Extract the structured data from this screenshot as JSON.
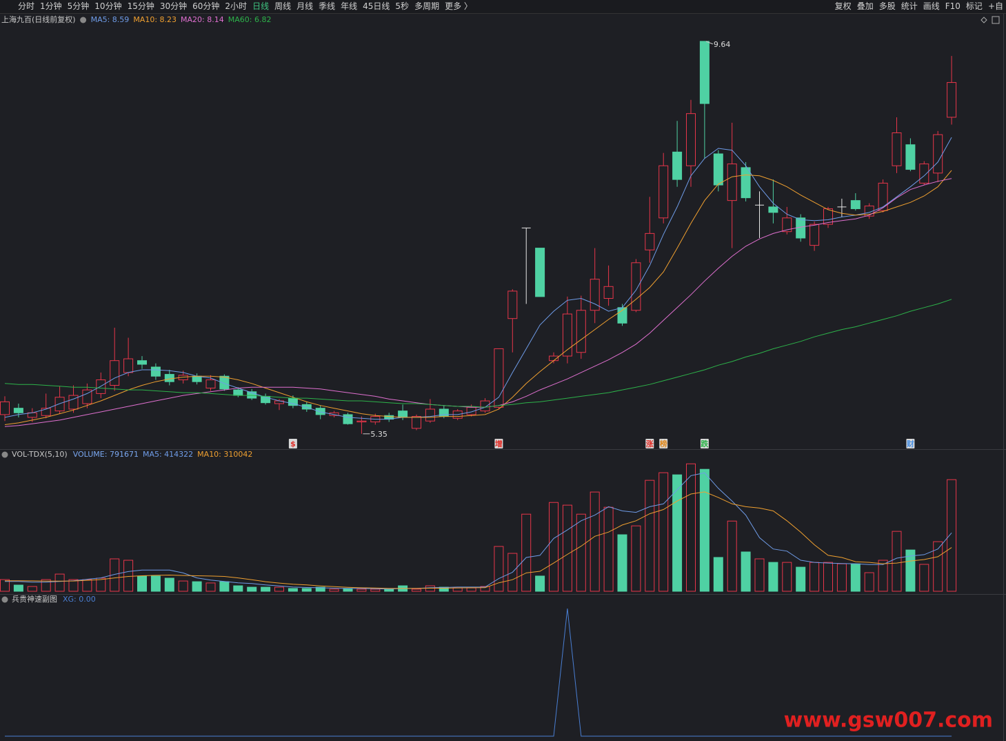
{
  "toolbar": {
    "periods": [
      "分时",
      "1分钟",
      "5分钟",
      "10分钟",
      "15分钟",
      "30分钟",
      "60分钟",
      "2小时",
      "日线",
      "周线",
      "月线",
      "季线",
      "年线",
      "45日线",
      "5秒",
      "多周期",
      "更多 〉"
    ],
    "active": "日线",
    "tools": [
      "复权",
      "叠加",
      "多股",
      "统计",
      "画线",
      "F10",
      "标记",
      "+自"
    ]
  },
  "chart_data": [
    {
      "type": "candlestick",
      "title": "上海九百(日线前复权)",
      "ylim": [
        5.19,
        9.79
      ],
      "open": [
        5.56,
        5.63,
        5.53,
        5.55,
        5.6,
        5.62,
        5.68,
        5.79,
        5.88,
        6.02,
        6.15,
        6.08,
        6.0,
        5.94,
        5.98,
        5.85,
        5.98,
        5.83,
        5.81,
        5.76,
        5.68,
        5.74,
        5.67,
        5.63,
        5.55,
        5.56,
        5.48,
        5.48,
        5.55,
        5.6,
        5.41,
        5.49,
        5.62,
        5.52,
        5.56,
        5.6,
        5.64,
        6.61,
        7.6,
        7.38,
        6.15,
        6.2,
        6.24,
        6.7,
        6.83,
        6.73,
        6.7,
        7.36,
        7.71,
        8.43,
        8.28,
        9.64,
        8.41,
        7.9,
        8.26,
        7.85,
        7.83,
        7.56,
        7.71,
        7.41,
        7.64,
        7.83,
        7.9,
        7.73,
        7.79,
        8.28,
        8.51,
        8.09,
        8.2,
        8.81
      ],
      "high": [
        5.76,
        5.68,
        5.63,
        5.79,
        5.87,
        5.88,
        5.9,
        6.02,
        6.51,
        6.4,
        6.2,
        6.12,
        6.05,
        6.04,
        6.01,
        5.99,
        6.0,
        5.86,
        5.84,
        5.79,
        5.73,
        5.77,
        5.7,
        5.66,
        5.6,
        5.58,
        5.54,
        5.57,
        5.58,
        5.67,
        5.56,
        5.73,
        5.66,
        5.62,
        5.67,
        5.74,
        6.28,
        6.93,
        7.6,
        7.38,
        6.24,
        6.85,
        6.86,
        7.38,
        7.19,
        6.77,
        7.26,
        7.94,
        8.42,
        8.77,
        9.0,
        9.64,
        8.45,
        8.75,
        8.32,
        8.0,
        8.13,
        7.83,
        7.75,
        7.67,
        7.83,
        7.92,
        7.98,
        7.87,
        8.13,
        8.81,
        8.58,
        8.33,
        8.66,
        9.48
      ],
      "low": [
        5.49,
        5.53,
        5.48,
        5.52,
        5.57,
        5.58,
        5.63,
        5.74,
        5.82,
        5.98,
        6.06,
        5.94,
        5.88,
        5.9,
        5.89,
        5.82,
        5.82,
        5.75,
        5.72,
        5.67,
        5.61,
        5.63,
        5.59,
        5.51,
        5.53,
        5.45,
        5.35,
        5.45,
        5.48,
        5.5,
        5.39,
        5.47,
        5.52,
        5.5,
        5.54,
        5.58,
        5.62,
        6.24,
        6.77,
        6.85,
        6.12,
        6.12,
        6.17,
        6.56,
        6.75,
        6.53,
        6.68,
        7.22,
        7.65,
        8.05,
        8.05,
        8.36,
        8.0,
        7.38,
        7.89,
        7.49,
        7.65,
        7.53,
        7.45,
        7.35,
        7.6,
        7.72,
        7.79,
        7.7,
        7.77,
        8.2,
        8.22,
        8.07,
        8.1,
        8.73
      ],
      "close": [
        5.7,
        5.58,
        5.58,
        5.63,
        5.75,
        5.77,
        5.83,
        5.94,
        6.15,
        6.17,
        6.11,
        5.98,
        5.92,
        5.99,
        5.92,
        5.94,
        5.84,
        5.77,
        5.74,
        5.69,
        5.71,
        5.66,
        5.62,
        5.56,
        5.58,
        5.46,
        5.49,
        5.54,
        5.51,
        5.53,
        5.54,
        5.62,
        5.54,
        5.6,
        5.64,
        5.71,
        6.28,
        6.91,
        7.6,
        6.85,
        6.2,
        6.66,
        6.7,
        7.04,
        6.96,
        6.56,
        7.22,
        7.54,
        8.28,
        8.13,
        8.85,
        8.96,
        8.07,
        8.3,
        7.93,
        7.85,
        7.77,
        7.71,
        7.49,
        7.64,
        7.81,
        7.83,
        7.81,
        7.84,
        8.09,
        8.64,
        8.24,
        8.3,
        8.62,
        9.19
      ],
      "series": [
        {
          "legend": "MA5: 8.59",
          "color": "#6f9ce8",
          "values": [
            5.53,
            5.56,
            5.58,
            5.62,
            5.68,
            5.73,
            5.79,
            5.87,
            5.96,
            6.02,
            6.05,
            6.05,
            6.04,
            6.02,
            5.98,
            5.96,
            5.9,
            5.85,
            5.8,
            5.75,
            5.71,
            5.68,
            5.64,
            5.59,
            5.56,
            5.53,
            5.52,
            5.51,
            5.51,
            5.53,
            5.53,
            5.54,
            5.56,
            5.56,
            5.59,
            5.64,
            5.75,
            6.02,
            6.28,
            6.54,
            6.69,
            6.81,
            6.83,
            6.77,
            6.69,
            6.73,
            6.92,
            7.19,
            7.53,
            7.83,
            8.17,
            8.36,
            8.47,
            8.45,
            8.28,
            8.05,
            7.87,
            7.75,
            7.69,
            7.68,
            7.69,
            7.72,
            7.74,
            7.77,
            7.83,
            7.94,
            8.05,
            8.17,
            8.32,
            8.59
          ]
        },
        {
          "legend": "MA10: 8.23",
          "color": "#f0a030",
          "values": [
            5.45,
            5.47,
            5.5,
            5.53,
            5.57,
            5.61,
            5.66,
            5.71,
            5.77,
            5.83,
            5.88,
            5.92,
            5.95,
            5.97,
            5.98,
            5.98,
            5.97,
            5.94,
            5.9,
            5.85,
            5.8,
            5.75,
            5.7,
            5.66,
            5.63,
            5.6,
            5.57,
            5.55,
            5.54,
            5.53,
            5.53,
            5.53,
            5.54,
            5.54,
            5.55,
            5.56,
            5.62,
            5.75,
            5.9,
            6.03,
            6.15,
            6.27,
            6.38,
            6.49,
            6.6,
            6.7,
            6.82,
            6.95,
            7.12,
            7.38,
            7.65,
            7.9,
            8.08,
            8.16,
            8.18,
            8.17,
            8.12,
            8.05,
            7.96,
            7.88,
            7.8,
            7.76,
            7.74,
            7.75,
            7.78,
            7.83,
            7.88,
            7.95,
            8.05,
            8.23
          ]
        },
        {
          "legend": "MA20: 8.14",
          "color": "#e070d0",
          "values": [
            5.43,
            5.44,
            5.46,
            5.48,
            5.5,
            5.53,
            5.56,
            5.59,
            5.62,
            5.65,
            5.68,
            5.71,
            5.74,
            5.77,
            5.79,
            5.81,
            5.83,
            5.85,
            5.86,
            5.86,
            5.86,
            5.86,
            5.85,
            5.84,
            5.82,
            5.8,
            5.78,
            5.76,
            5.73,
            5.71,
            5.69,
            5.67,
            5.66,
            5.65,
            5.64,
            5.64,
            5.66,
            5.7,
            5.76,
            5.83,
            5.89,
            5.95,
            6.02,
            6.09,
            6.16,
            6.24,
            6.33,
            6.45,
            6.59,
            6.73,
            6.87,
            7.02,
            7.16,
            7.29,
            7.4,
            7.48,
            7.54,
            7.58,
            7.61,
            7.63,
            7.66,
            7.68,
            7.7,
            7.74,
            7.82,
            7.93,
            8.02,
            8.07,
            8.11,
            8.14
          ]
        },
        {
          "legend": "MA60: 6.82",
          "color": "#2db34a",
          "values": [
            5.9,
            5.89,
            5.89,
            5.88,
            5.87,
            5.86,
            5.86,
            5.85,
            5.84,
            5.83,
            5.83,
            5.82,
            5.81,
            5.8,
            5.8,
            5.79,
            5.78,
            5.77,
            5.77,
            5.76,
            5.75,
            5.74,
            5.74,
            5.73,
            5.72,
            5.71,
            5.71,
            5.7,
            5.69,
            5.68,
            5.68,
            5.67,
            5.66,
            5.65,
            5.65,
            5.64,
            5.66,
            5.67,
            5.69,
            5.7,
            5.72,
            5.74,
            5.76,
            5.78,
            5.8,
            5.83,
            5.86,
            5.89,
            5.93,
            5.97,
            6.01,
            6.05,
            6.1,
            6.14,
            6.19,
            6.23,
            6.28,
            6.32,
            6.36,
            6.41,
            6.45,
            6.49,
            6.52,
            6.56,
            6.6,
            6.64,
            6.69,
            6.73,
            6.77,
            6.82
          ]
        }
      ],
      "events": [
        null,
        null,
        null,
        null,
        null,
        null,
        null,
        null,
        null,
        null,
        null,
        null,
        null,
        null,
        null,
        null,
        null,
        null,
        null,
        null,
        null,
        {
          "label": "$",
          "color": "#e0302a"
        },
        null,
        null,
        null,
        null,
        null,
        null,
        null,
        null,
        null,
        null,
        null,
        null,
        null,
        null,
        {
          "label": "增",
          "color": "#e0302a"
        },
        null,
        null,
        null,
        null,
        null,
        null,
        null,
        null,
        null,
        null,
        {
          "label": "涨",
          "color": "#e0302a"
        },
        {
          "label": "榜",
          "color": "#e08a20"
        },
        null,
        null,
        {
          "label": "跌",
          "color": "#2db34a"
        },
        null,
        null,
        null,
        null,
        null,
        null,
        null,
        null,
        null,
        null,
        null,
        null,
        null,
        null,
        {
          "label": "财",
          "color": "#4a90e2"
        },
        null,
        null
      ]
    },
    {
      "type": "bar",
      "title": "VOL-TDX(5,10)",
      "value_legend": "VOLUME: 791671",
      "ylim": [
        0,
        915000
      ],
      "values": [
        83000,
        44000,
        34000,
        83000,
        122000,
        83000,
        83000,
        93000,
        230000,
        220000,
        108000,
        108000,
        93000,
        73000,
        68000,
        59000,
        68000,
        39000,
        29000,
        29000,
        29000,
        20000,
        20000,
        29000,
        15000,
        20000,
        15000,
        15000,
        15000,
        39000,
        15000,
        39000,
        29000,
        24000,
        24000,
        34000,
        318000,
        269000,
        547000,
        108000,
        630000,
        611000,
        547000,
        704000,
        596000,
        401000,
        464000,
        787000,
        841000,
        826000,
        904000,
        865000,
        240000,
        498000,
        279000,
        230000,
        205000,
        205000,
        171000,
        205000,
        205000,
        195000,
        195000,
        132000,
        220000,
        425000,
        293000,
        191000,
        352000,
        791671
      ],
      "series": [
        {
          "legend": "MA5: 414322",
          "color": "#6f9ce8",
          "values": [
            70000,
            70000,
            65000,
            65000,
            70000,
            75000,
            85000,
            95000,
            120000,
            140000,
            150000,
            150000,
            150000,
            130000,
            95000,
            80000,
            70000,
            60000,
            55000,
            45000,
            38000,
            30000,
            27000,
            25000,
            22000,
            20000,
            20000,
            18000,
            16000,
            20000,
            20000,
            25000,
            27000,
            30000,
            30000,
            30000,
            90000,
            135000,
            240000,
            255000,
            375000,
            435000,
            500000,
            540000,
            600000,
            570000,
            560000,
            600000,
            620000,
            720000,
            820000,
            840000,
            730000,
            640000,
            540000,
            380000,
            300000,
            285000,
            220000,
            205000,
            200000,
            197000,
            195000,
            190000,
            190000,
            235000,
            250000,
            260000,
            300000,
            414322
          ]
        },
        {
          "legend": "MA10: 310042",
          "color": "#f0a030",
          "values": [
            75000,
            75000,
            74000,
            72000,
            72000,
            73000,
            78000,
            83000,
            95000,
            105000,
            110000,
            113000,
            115000,
            112000,
            110000,
            108000,
            105000,
            95000,
            82000,
            68000,
            58000,
            50000,
            45000,
            38000,
            33000,
            28000,
            25000,
            23000,
            20000,
            20000,
            20000,
            22000,
            22000,
            24000,
            25000,
            26000,
            60000,
            82000,
            130000,
            142000,
            200000,
            262000,
            320000,
            390000,
            420000,
            470000,
            500000,
            550000,
            580000,
            640000,
            690000,
            705000,
            665000,
            620000,
            600000,
            590000,
            570000,
            500000,
            420000,
            330000,
            255000,
            240000,
            210000,
            205000,
            195000,
            200000,
            215000,
            225000,
            245000,
            310042
          ]
        }
      ]
    },
    {
      "type": "line",
      "title": "兵贵神速副图",
      "ylim": [
        0,
        1
      ],
      "series": [
        {
          "legend": "XG: 0.00",
          "color": "#4a7fd4",
          "values": [
            0,
            0,
            0,
            0,
            0,
            0,
            0,
            0,
            0,
            0,
            0,
            0,
            0,
            0,
            0,
            0,
            0,
            0,
            0,
            0,
            0,
            0,
            0,
            0,
            0,
            0,
            0,
            0,
            0,
            0,
            0,
            0,
            0,
            0,
            0,
            0,
            0,
            0,
            0,
            0,
            0,
            1,
            0,
            0,
            0,
            0,
            0,
            0,
            0,
            0,
            0,
            0,
            0,
            0,
            0,
            0,
            0,
            0,
            0,
            0,
            0,
            0,
            0,
            0,
            0,
            0,
            0,
            0,
            0,
            0
          ]
        }
      ]
    }
  ],
  "watermark": "www.gsw007.com"
}
